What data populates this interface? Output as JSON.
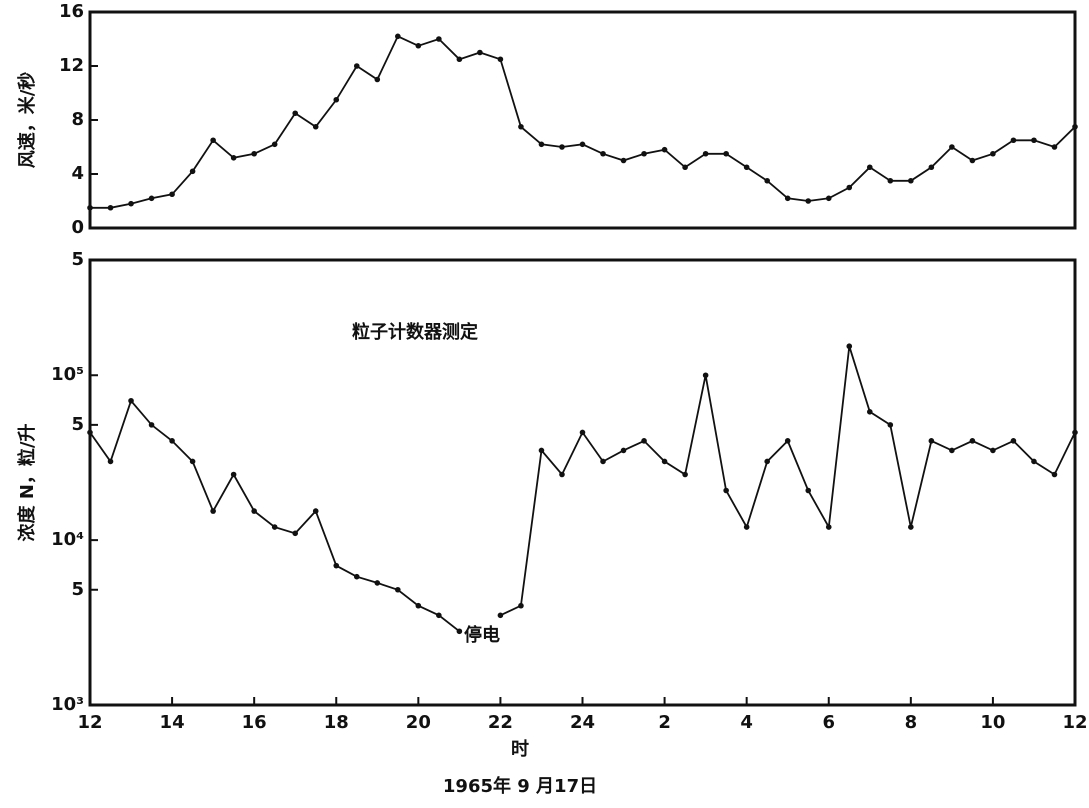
{
  "chart_data": [
    {
      "type": "line",
      "ylabel": "风速，米/秒",
      "x": [
        12,
        12.5,
        13,
        13.5,
        14,
        14.5,
        15,
        15.5,
        16,
        16.5,
        17,
        17.5,
        18,
        18.5,
        19,
        19.5,
        20,
        20.5,
        21,
        21.5,
        22,
        22.5,
        23,
        23.5,
        24,
        24.5,
        25,
        25.5,
        26,
        26.5,
        27,
        27.5,
        28,
        28.5,
        29,
        29.5,
        30,
        30.5,
        31,
        31.5,
        32,
        32.5,
        33,
        33.5,
        34,
        34.5,
        35,
        35.5,
        36
      ],
      "series": [
        {
          "color": "#111111",
          "values": [
            1.5,
            1.5,
            1.8,
            2.2,
            2.5,
            4.2,
            6.5,
            5.2,
            5.5,
            6.2,
            8.5,
            7.5,
            9.5,
            12,
            11,
            14.2,
            13.5,
            14,
            12.5,
            13,
            12.5,
            7.5,
            6.2,
            6,
            6.2,
            5.5,
            5,
            5.5,
            5.8,
            4.5,
            5.5,
            5.5,
            4.5,
            3.5,
            2.2,
            2,
            2.2,
            3,
            4.5,
            3.5,
            3.5,
            4.5,
            6,
            5,
            5.5,
            6.5,
            6.5,
            6,
            7.5
          ]
        }
      ],
      "xlim": [
        12,
        36
      ],
      "ylim": [
        0,
        16
      ],
      "yticks": [
        0,
        4,
        8,
        12,
        16
      ]
    },
    {
      "type": "line",
      "ylabel": "浓度 N，粒/升",
      "xlabel": "时",
      "caption": "1965年 9 月17日",
      "annotations": [
        "粒子计数器测定",
        "停电"
      ],
      "log_scale": true,
      "x": [
        12,
        12.5,
        13,
        13.5,
        14,
        14.5,
        15,
        15.5,
        16,
        16.5,
        17,
        17.5,
        18,
        18.5,
        19,
        19.5,
        20,
        20.5,
        21,
        21.5,
        22,
        22.5,
        23,
        23.5,
        24,
        24.5,
        25,
        25.5,
        26,
        26.5,
        27,
        27.5,
        28,
        28.5,
        29,
        29.5,
        30,
        30.5,
        31,
        31.5,
        32,
        32.5,
        33,
        33.5,
        34,
        34.5,
        35,
        35.5,
        36
      ],
      "series": [
        {
          "color": "#111111",
          "values": [
            45000,
            30000,
            70000,
            50000,
            40000,
            30000,
            15000,
            25000,
            15000,
            12000,
            11000,
            15000,
            7000,
            6000,
            5500,
            5000,
            4000,
            3500,
            2800,
            null,
            3500,
            4000,
            35000,
            25000,
            45000,
            30000,
            35000,
            40000,
            30000,
            25000,
            100000,
            20000,
            12000,
            30000,
            40000,
            20000,
            12000,
            150000,
            60000,
            50000,
            12000,
            40000,
            35000,
            40000,
            35000,
            40000,
            30000,
            25000,
            45000
          ]
        }
      ],
      "xlim": [
        12,
        36
      ],
      "ylim": [
        1000,
        500000
      ],
      "xticks": [
        12,
        14,
        16,
        18,
        20,
        22,
        24,
        {
          "value": 26,
          "label": "2"
        },
        {
          "value": 28,
          "label": "4"
        },
        {
          "value": 30,
          "label": "6"
        },
        {
          "value": 32,
          "label": "8"
        },
        {
          "value": 34,
          "label": "10"
        },
        {
          "value": 36,
          "label": "12"
        }
      ],
      "yticks": [
        {
          "value": 1000,
          "label": "10³"
        },
        {
          "value": 5000,
          "label": "5"
        },
        {
          "value": 10000,
          "label": "10⁴"
        },
        {
          "value": 50000,
          "label": "5"
        },
        {
          "value": 100000,
          "label": "10⁵"
        },
        {
          "value": 500000,
          "label": "5"
        }
      ]
    }
  ]
}
